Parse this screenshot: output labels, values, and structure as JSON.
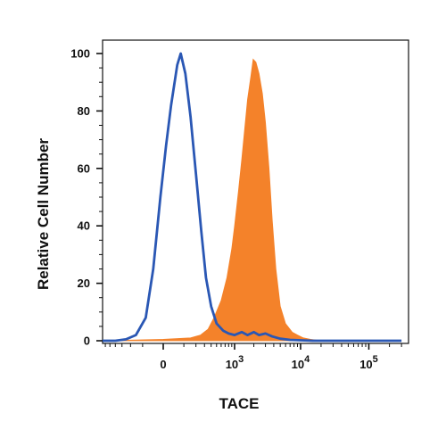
{
  "chart_data": {
    "type": "area",
    "xlabel": "TACE",
    "ylabel": "Relative Cell Number",
    "ylim": [
      0,
      100
    ],
    "x_scale": "biexponential",
    "x_ticks": [
      {
        "value": 0,
        "base": "0",
        "exp": ""
      },
      {
        "value": 1000,
        "base": "10",
        "exp": "3"
      },
      {
        "value": 10000,
        "base": "10",
        "exp": "4"
      },
      {
        "value": 100000,
        "base": "10",
        "exp": "5"
      }
    ],
    "y_ticks": [
      "0",
      "20",
      "40",
      "60",
      "80",
      "100"
    ],
    "series": [
      {
        "style": "filled",
        "color": "#f4822a",
        "points": [
          [
            -2000,
            0
          ],
          [
            0,
            0.5
          ],
          [
            150,
            1
          ],
          [
            250,
            2
          ],
          [
            350,
            4
          ],
          [
            450,
            8
          ],
          [
            600,
            14
          ],
          [
            750,
            22
          ],
          [
            900,
            32
          ],
          [
            1000,
            40
          ],
          [
            1150,
            52
          ],
          [
            1300,
            63
          ],
          [
            1450,
            74
          ],
          [
            1600,
            84
          ],
          [
            1800,
            92
          ],
          [
            1950,
            98
          ],
          [
            2150,
            97
          ],
          [
            2400,
            93
          ],
          [
            2700,
            86
          ],
          [
            3000,
            76
          ],
          [
            3400,
            60
          ],
          [
            3800,
            42
          ],
          [
            4300,
            25
          ],
          [
            5000,
            12
          ],
          [
            6000,
            6
          ],
          [
            7500,
            3
          ],
          [
            9000,
            2
          ],
          [
            11000,
            1
          ],
          [
            14000,
            0.5
          ],
          [
            20000,
            0
          ],
          [
            300000,
            0
          ]
        ]
      },
      {
        "style": "line",
        "color": "#2a57b4",
        "points": [
          [
            -2000,
            0
          ],
          [
            -400,
            0
          ],
          [
            -250,
            0.5
          ],
          [
            -150,
            2
          ],
          [
            -80,
            8
          ],
          [
            -40,
            25
          ],
          [
            -10,
            50
          ],
          [
            10,
            68
          ],
          [
            30,
            82
          ],
          [
            60,
            96
          ],
          [
            80,
            100
          ],
          [
            110,
            93
          ],
          [
            150,
            78
          ],
          [
            200,
            58
          ],
          [
            260,
            38
          ],
          [
            320,
            22
          ],
          [
            400,
            12
          ],
          [
            500,
            6
          ],
          [
            650,
            3.5
          ],
          [
            800,
            2.5
          ],
          [
            1000,
            2
          ],
          [
            1300,
            3
          ],
          [
            1600,
            2
          ],
          [
            2000,
            3
          ],
          [
            2400,
            2
          ],
          [
            3000,
            2.5
          ],
          [
            3800,
            1.5
          ],
          [
            5000,
            0.7
          ],
          [
            7000,
            0.3
          ],
          [
            15000,
            0
          ],
          [
            300000,
            0
          ]
        ]
      }
    ]
  }
}
